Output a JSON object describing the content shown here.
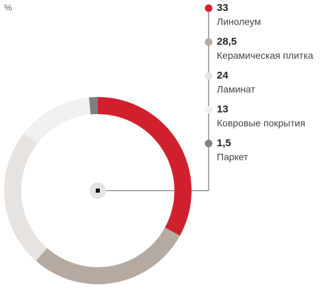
{
  "chart_data": {
    "type": "donut",
    "unit": "%",
    "categories": [
      "Линолеум",
      "Керамическая плитка",
      "Ламинат",
      "Ковровые покрытия",
      "Паркет"
    ],
    "values": [
      33,
      28.5,
      24,
      13,
      1.5
    ],
    "value_labels": [
      "33",
      "28,5",
      "24",
      "13",
      "1,5"
    ],
    "colors": [
      "#d0202e",
      "#b5aaa1",
      "#e6e3e0",
      "#f1f0ef",
      "#808080"
    ]
  }
}
